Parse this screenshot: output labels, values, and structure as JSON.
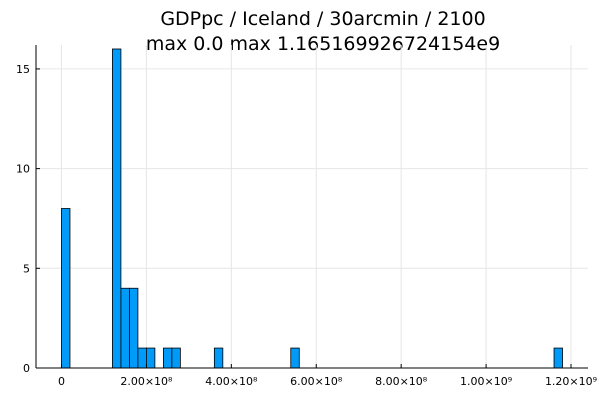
{
  "chart_data": {
    "type": "bar",
    "title": "GDPpc / Iceland / 30arcmin / 2100",
    "subtitle": "max 0.0  max 1.165169926724154e9",
    "xlabel": "",
    "ylabel": "",
    "xlim": [
      -60000000,
      1240000000
    ],
    "ylim": [
      0,
      16.2
    ],
    "grid": true,
    "legend": "none",
    "bar_color": "#009af9",
    "bin_width": 20000000,
    "bins": [
      {
        "x0": 0,
        "x1": 20000000,
        "count": 8
      },
      {
        "x0": 120000000,
        "x1": 140000000,
        "count": 16
      },
      {
        "x0": 140000000,
        "x1": 160000000,
        "count": 4
      },
      {
        "x0": 160000000,
        "x1": 180000000,
        "count": 4
      },
      {
        "x0": 180000000,
        "x1": 200000000,
        "count": 1
      },
      {
        "x0": 200000000,
        "x1": 220000000,
        "count": 1
      },
      {
        "x0": 240000000,
        "x1": 260000000,
        "count": 1
      },
      {
        "x0": 260000000,
        "x1": 280000000,
        "count": 1
      },
      {
        "x0": 360000000,
        "x1": 380000000,
        "count": 1
      },
      {
        "x0": 540000000,
        "x1": 560000000,
        "count": 1
      },
      {
        "x0": 1160000000,
        "x1": 1180000000,
        "count": 1
      }
    ],
    "x_ticks": [
      {
        "value": 0,
        "label": "0"
      },
      {
        "value": 200000000,
        "label": "2.00×10⁸"
      },
      {
        "value": 400000000,
        "label": "4.00×10⁸"
      },
      {
        "value": 600000000,
        "label": "6.00×10⁸"
      },
      {
        "value": 800000000,
        "label": "8.00×10⁸"
      },
      {
        "value": 1000000000,
        "label": "1.00×10⁹"
      },
      {
        "value": 1200000000,
        "label": "1.20×10⁹"
      }
    ],
    "y_ticks": [
      {
        "value": 0,
        "label": "0"
      },
      {
        "value": 5,
        "label": "5"
      },
      {
        "value": 10,
        "label": "10"
      },
      {
        "value": 15,
        "label": "15"
      }
    ]
  }
}
